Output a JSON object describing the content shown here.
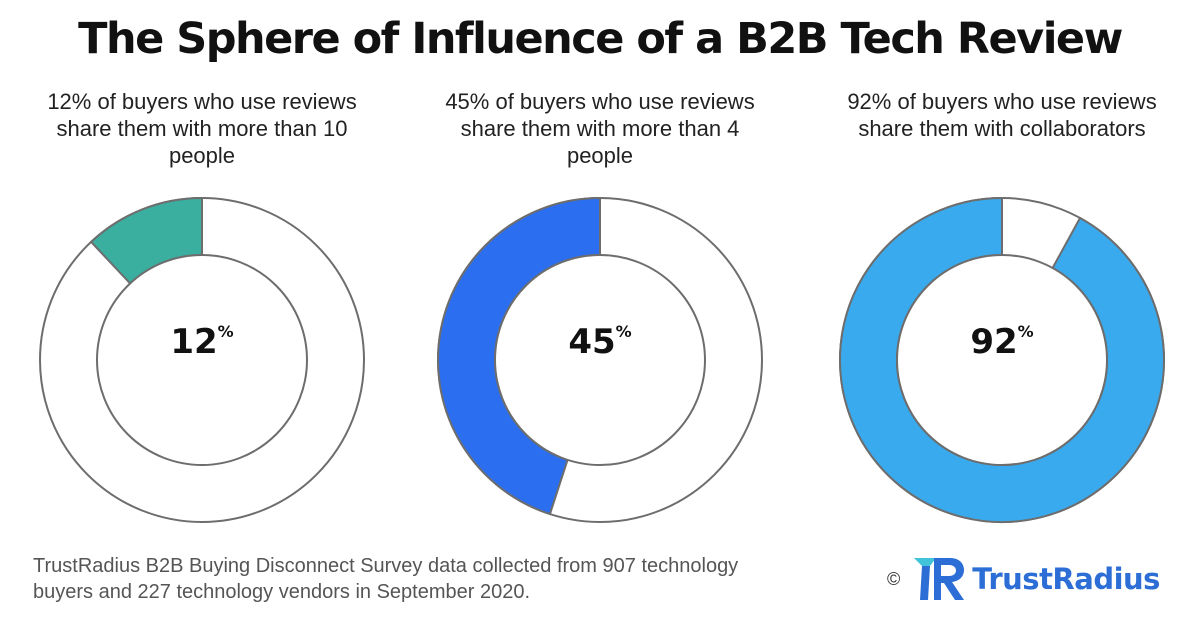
{
  "title": "The Sphere of Influence of a B2B Tech Review",
  "chart_data": [
    {
      "type": "pie",
      "variant": "donut",
      "caption": "12% of buyers who use reviews share them with more than 10 people",
      "value": 12,
      "label": "12",
      "unit": "%",
      "color": "#3aaf9f"
    },
    {
      "type": "pie",
      "variant": "donut",
      "caption": "45% of buyers who use reviews share them with more than 4 people",
      "value": 45,
      "label": "45",
      "unit": "%",
      "color": "#2b6ef0"
    },
    {
      "type": "pie",
      "variant": "donut",
      "caption": "92% of buyers who use reviews share them with collaborators",
      "value": 92,
      "label": "92",
      "unit": "%",
      "color": "#3aaaee"
    }
  ],
  "footnote": "TrustRadius B2B Buying Disconnect Survey data collected from 907 technology buyers and 227 technology vendors in September 2020.",
  "brand": {
    "copyright": "©",
    "logo_icon": "trustradius-logo-icon",
    "name": "TrustRadius",
    "color": "#2c6ed6"
  }
}
